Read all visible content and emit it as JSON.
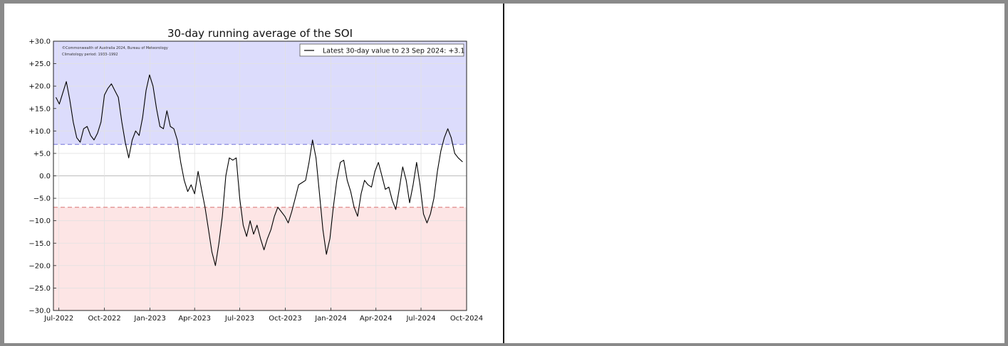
{
  "chart_data": {
    "type": "line",
    "title": "30-day running average of the SOI",
    "credit_line1": "©Commonwealth of Australia 2024, Bureau of Meteorology",
    "credit_line2": "Climatology period: 1933–1992",
    "legend": "Latest 30-day value to 23 Sep 2024: +3.1",
    "legend_position": "top-right",
    "ylim": [
      -30,
      30
    ],
    "xlim": [
      "2022-06-20",
      "2024-10-01"
    ],
    "thresholds": [
      7,
      -7
    ],
    "colors": {
      "positive_band": "#dcdcfc",
      "negative_band": "#fde5e5",
      "upper_threshold": "#8a8ae0",
      "lower_threshold": "#e08a8a",
      "line": "#000000"
    },
    "grid": true,
    "yticks": [
      "+30.0",
      "+25.0",
      "+20.0",
      "+15.0",
      "+10.0",
      "+5.0",
      "0.0",
      "−5.0",
      "−10.0",
      "−15.0",
      "−20.0",
      "−25.0",
      "−30.0"
    ],
    "ytick_values": [
      30,
      25,
      20,
      15,
      10,
      5,
      0,
      -5,
      -10,
      -15,
      -20,
      -25,
      -30
    ],
    "xticks": [
      "Jul-2022",
      "Oct-2022",
      "Jan-2023",
      "Apr-2023",
      "Jul-2023",
      "Oct-2023",
      "Jan-2024",
      "Apr-2024",
      "Jul-2024",
      "Oct-2024"
    ],
    "xtick_dates": [
      "2022-07-01",
      "2022-10-01",
      "2023-01-01",
      "2023-04-01",
      "2023-07-01",
      "2023-10-01",
      "2024-01-01",
      "2024-04-01",
      "2024-07-01",
      "2024-10-01"
    ],
    "series": [
      {
        "dates": [
          "2022-06-25",
          "2022-07-02",
          "2022-07-09",
          "2022-07-16",
          "2022-07-23",
          "2022-07-30",
          "2022-08-06",
          "2022-08-13",
          "2022-08-20",
          "2022-08-27",
          "2022-09-03",
          "2022-09-10",
          "2022-09-17",
          "2022-09-24",
          "2022-10-01",
          "2022-10-08",
          "2022-10-15",
          "2022-10-22",
          "2022-10-29",
          "2022-11-05",
          "2022-11-12",
          "2022-11-19",
          "2022-11-26",
          "2022-12-03",
          "2022-12-10",
          "2022-12-17",
          "2022-12-24",
          "2022-12-31",
          "2023-01-07",
          "2023-01-14",
          "2023-01-21",
          "2023-01-28",
          "2023-02-04",
          "2023-02-11",
          "2023-02-18",
          "2023-02-25",
          "2023-03-04",
          "2023-03-11",
          "2023-03-18",
          "2023-03-25",
          "2023-04-01",
          "2023-04-08",
          "2023-04-15",
          "2023-04-22",
          "2023-04-29",
          "2023-05-06",
          "2023-05-13",
          "2023-05-20",
          "2023-05-27",
          "2023-06-03",
          "2023-06-10",
          "2023-06-17",
          "2023-06-24",
          "2023-07-01",
          "2023-07-08",
          "2023-07-15",
          "2023-07-22",
          "2023-07-29",
          "2023-08-05",
          "2023-08-12",
          "2023-08-19",
          "2023-08-26",
          "2023-09-02",
          "2023-09-09",
          "2023-09-16",
          "2023-09-23",
          "2023-09-30",
          "2023-10-07",
          "2023-10-14",
          "2023-10-21",
          "2023-10-28",
          "2023-11-04",
          "2023-11-11",
          "2023-11-18",
          "2023-11-25",
          "2023-12-02",
          "2023-12-09",
          "2023-12-16",
          "2023-12-23",
          "2023-12-30",
          "2024-01-06",
          "2024-01-13",
          "2024-01-20",
          "2024-01-27",
          "2024-02-03",
          "2024-02-10",
          "2024-02-17",
          "2024-02-24",
          "2024-03-02",
          "2024-03-09",
          "2024-03-16",
          "2024-03-23",
          "2024-03-30",
          "2024-04-06",
          "2024-04-13",
          "2024-04-20",
          "2024-04-27",
          "2024-05-04",
          "2024-05-11",
          "2024-05-18",
          "2024-05-25",
          "2024-06-01",
          "2024-06-08",
          "2024-06-15",
          "2024-06-22",
          "2024-06-29",
          "2024-07-06",
          "2024-07-13",
          "2024-07-20",
          "2024-07-27",
          "2024-08-03",
          "2024-08-10",
          "2024-08-17",
          "2024-08-24",
          "2024-08-31",
          "2024-09-07",
          "2024-09-14",
          "2024-09-23"
        ],
        "values": [
          17.5,
          16.0,
          18.5,
          21.0,
          17.0,
          12.0,
          8.5,
          7.5,
          10.5,
          11.0,
          9.0,
          8.0,
          9.5,
          12.0,
          18.0,
          19.5,
          20.5,
          19.0,
          17.5,
          12.0,
          7.5,
          4.0,
          8.0,
          10.0,
          9.0,
          13.0,
          19.0,
          22.5,
          20.0,
          15.0,
          11.0,
          10.5,
          14.5,
          11.0,
          10.5,
          8.0,
          3.0,
          -1.0,
          -3.5,
          -2.0,
          -4.0,
          1.0,
          -3.0,
          -7.0,
          -12.0,
          -17.0,
          -20.0,
          -15.0,
          -9.0,
          0.0,
          4.0,
          3.5,
          4.0,
          -5.0,
          -11.0,
          -13.5,
          -10.0,
          -13.0,
          -11.0,
          -14.0,
          -16.5,
          -14.0,
          -12.0,
          -9.0,
          -7.0,
          -8.0,
          -9.0,
          -10.5,
          -8.0,
          -5.0,
          -2.0,
          -1.5,
          -1.0,
          3.0,
          8.0,
          4.0,
          -4.0,
          -12.0,
          -17.5,
          -14.0,
          -7.0,
          -1.0,
          3.0,
          3.5,
          -1.0,
          -3.5,
          -7.0,
          -9.0,
          -4.0,
          -1.0,
          -2.0,
          -2.5,
          1.0,
          3.0,
          0.0,
          -3.0,
          -2.5,
          -5.5,
          -7.5,
          -3.0,
          2.0,
          -1.0,
          -6.0,
          -2.0,
          3.0,
          -2.0,
          -8.5,
          -10.5,
          -8.5,
          -5.0,
          1.0,
          5.5,
          8.5,
          10.5,
          8.5,
          5.0,
          4.0,
          3.1
        ]
      }
    ]
  }
}
